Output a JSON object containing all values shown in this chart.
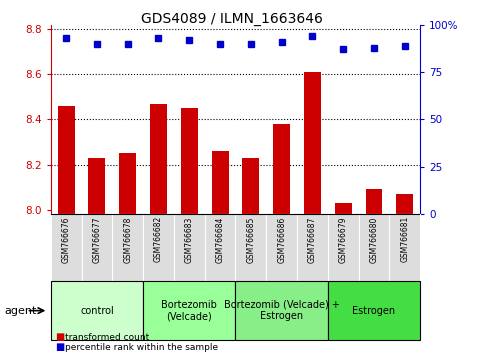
{
  "title": "GDS4089 / ILMN_1663646",
  "samples": [
    "GSM766676",
    "GSM766677",
    "GSM766678",
    "GSM766682",
    "GSM766683",
    "GSM766684",
    "GSM766685",
    "GSM766686",
    "GSM766687",
    "GSM766679",
    "GSM766680",
    "GSM766681"
  ],
  "bar_values": [
    8.46,
    8.23,
    8.25,
    8.47,
    8.45,
    8.26,
    8.23,
    8.38,
    8.61,
    8.03,
    8.09,
    8.07
  ],
  "percentile_values": [
    93,
    90,
    90,
    93,
    92,
    90,
    90,
    91,
    94,
    87,
    88,
    89
  ],
  "bar_color": "#cc0000",
  "dot_color": "#0000cc",
  "ylim_left": [
    7.98,
    8.82
  ],
  "ylim_right": [
    0,
    100
  ],
  "yticks_left": [
    8.0,
    8.2,
    8.4,
    8.6,
    8.8
  ],
  "yticks_right": [
    0,
    25,
    50,
    75,
    100
  ],
  "groups": [
    {
      "label": "control",
      "start": 0,
      "end": 3,
      "color": "#ccffcc"
    },
    {
      "label": "Bortezomib\n(Velcade)",
      "start": 3,
      "end": 6,
      "color": "#99ff99"
    },
    {
      "label": "Bortezomib (Velcade) +\nEstrogen",
      "start": 6,
      "end": 9,
      "color": "#88ee88"
    },
    {
      "label": "Estrogen",
      "start": 9,
      "end": 12,
      "color": "#44dd44"
    }
  ],
  "agent_label": "agent",
  "legend": [
    {
      "color": "#cc0000",
      "label": "transformed count"
    },
    {
      "color": "#0000cc",
      "label": "percentile rank within the sample"
    }
  ],
  "bar_bottom": 7.98,
  "grid_lines": [
    8.2,
    8.4,
    8.6,
    8.8
  ],
  "background_color": "#ffffff",
  "label_box_color": "#dddddd",
  "group_border_color": "#000000"
}
